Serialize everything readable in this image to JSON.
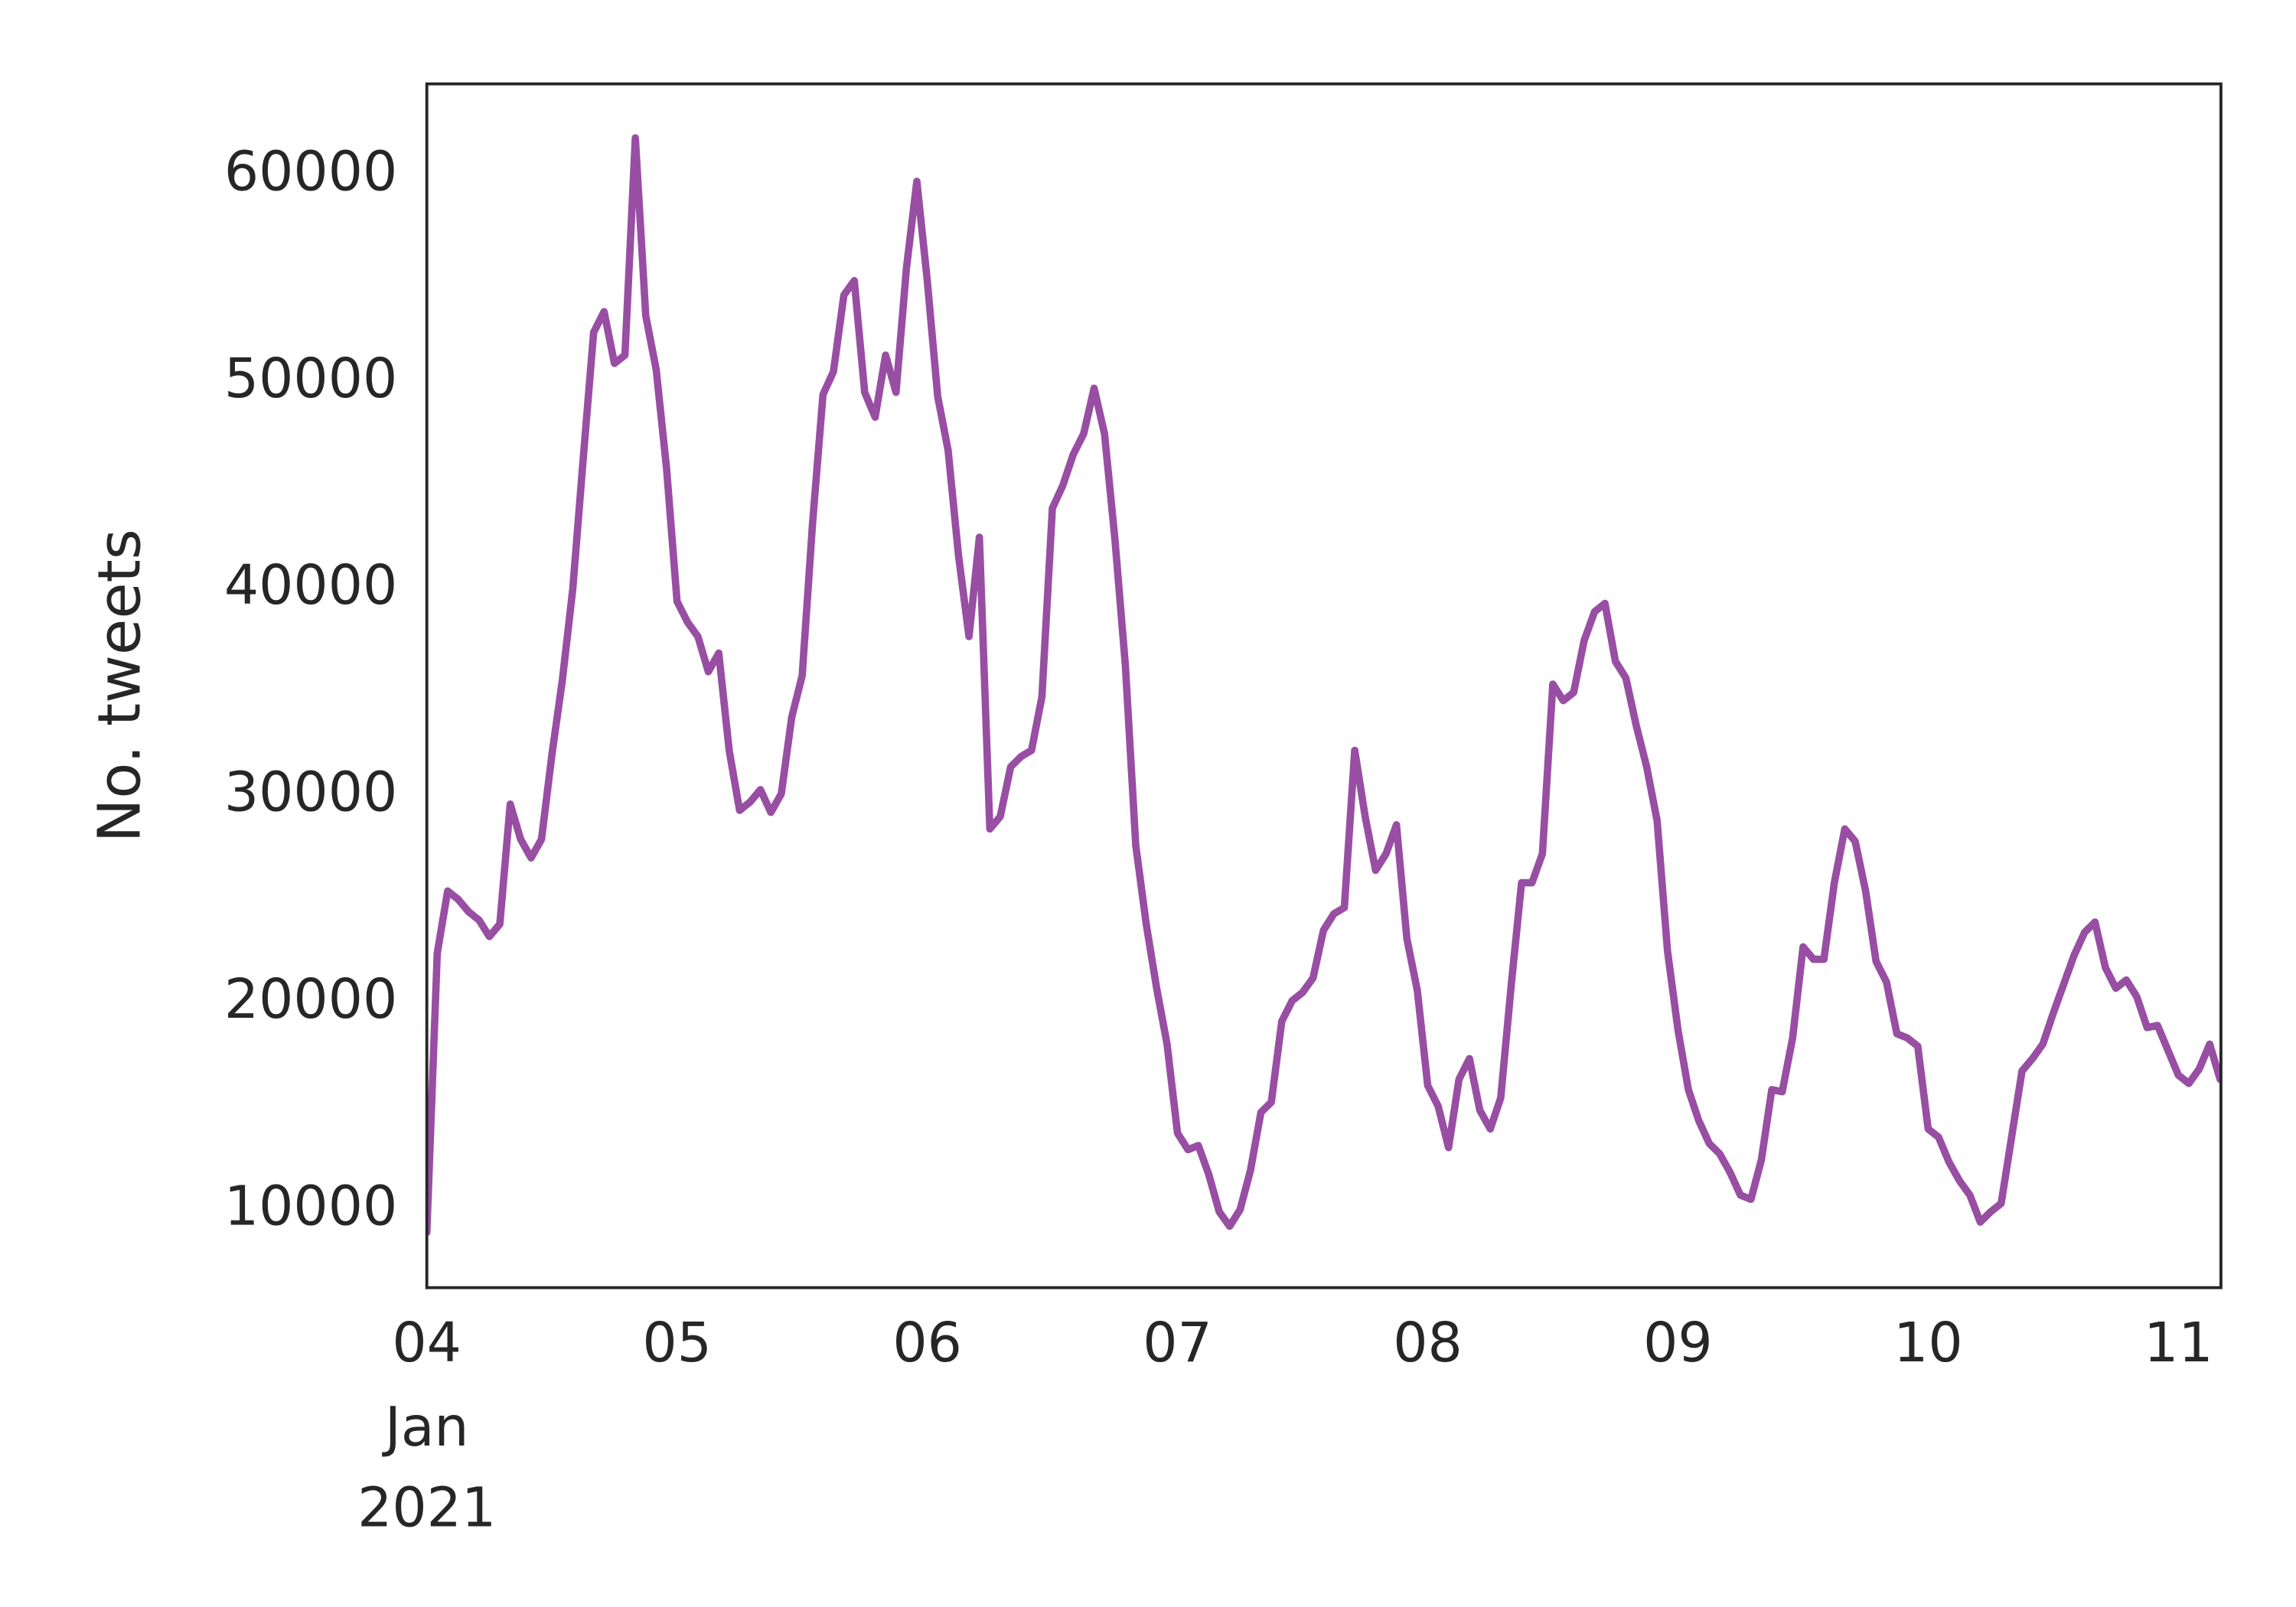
{
  "chart_data": {
    "type": "line",
    "ylabel": "No. tweets",
    "color": "#984ea3",
    "grid": false,
    "xlim": [
      4,
      11.17
    ],
    "ylim": [
      6230,
      64410
    ],
    "xticks": [
      {
        "value": 4,
        "label": "04"
      },
      {
        "value": 5,
        "label": "05"
      },
      {
        "value": 6,
        "label": "06"
      },
      {
        "value": 7,
        "label": "07"
      },
      {
        "value": 8,
        "label": "08"
      },
      {
        "value": 9,
        "label": "09"
      },
      10,
      11
    ],
    "xtick_date_label": [
      "Jan",
      "2021"
    ],
    "yticks": [
      10000,
      20000,
      30000,
      40000,
      50000,
      60000
    ],
    "x": [
      4,
      4.0417,
      4.0833,
      4.125,
      4.1667,
      4.2083,
      4.25,
      4.2917,
      4.3333,
      4.375,
      4.4167,
      4.4583,
      4.5,
      4.5417,
      4.5833,
      4.625,
      4.6667,
      4.7083,
      4.75,
      4.7917,
      4.8333,
      4.875,
      4.9167,
      4.9583,
      5,
      5.0417,
      5.0833,
      5.125,
      5.1667,
      5.2083,
      5.25,
      5.2917,
      5.3333,
      5.375,
      5.4167,
      5.4583,
      5.5,
      5.5417,
      5.5833,
      5.625,
      5.6667,
      5.7083,
      5.75,
      5.7917,
      5.8333,
      5.875,
      5.9167,
      5.9583,
      6,
      6.0417,
      6.0833,
      6.125,
      6.1667,
      6.2083,
      6.25,
      6.2917,
      6.3333,
      6.375,
      6.4167,
      6.4583,
      6.5,
      6.5417,
      6.5833,
      6.625,
      6.6667,
      6.7083,
      6.75,
      6.7917,
      6.8333,
      6.875,
      6.9167,
      6.9583,
      7,
      7.0417,
      7.0833,
      7.125,
      7.1667,
      7.2083,
      7.25,
      7.2917,
      7.3333,
      7.375,
      7.4167,
      7.4583,
      7.5,
      7.5417,
      7.5833,
      7.625,
      7.6667,
      7.7083,
      7.75,
      7.7917,
      7.8333,
      7.875,
      7.9167,
      7.9583,
      8,
      8.0417,
      8.0833,
      8.125,
      8.1667,
      8.2083,
      8.25,
      8.2917,
      8.3333,
      8.375,
      8.4167,
      8.4583,
      8.5,
      8.5417,
      8.5833,
      8.625,
      8.6667,
      8.7083,
      8.75,
      8.7917,
      8.8333,
      8.875,
      8.9167,
      8.9583,
      9,
      9.0417,
      9.0833,
      9.125,
      9.1667,
      9.2083,
      9.25,
      9.2917,
      9.3333,
      9.375,
      9.4167,
      9.4583,
      9.5,
      9.5417,
      9.5833,
      9.625,
      9.6667,
      9.7083,
      9.75,
      9.7917,
      9.8333,
      9.875,
      9.9167,
      9.9583,
      10,
      10.0417,
      10.0833,
      10.125,
      10.1667,
      10.2083,
      10.25,
      10.2917,
      10.3333,
      10.375,
      10.4167,
      10.4583,
      10.5,
      10.5417,
      10.5833,
      10.625,
      10.6667,
      10.7083,
      10.75,
      10.7917,
      10.8333,
      10.875,
      10.9167,
      10.9583,
      11,
      11.0417,
      11.0833,
      11.125,
      11.1667
    ],
    "values": [
      8900,
      22400,
      25400,
      25000,
      24400,
      24000,
      23200,
      23800,
      29600,
      27900,
      27000,
      27900,
      32000,
      35600,
      40000,
      46300,
      52400,
      53400,
      50900,
      51300,
      61800,
      53200,
      50600,
      45800,
      39400,
      38400,
      37700,
      36000,
      36900,
      32200,
      29300,
      29700,
      30300,
      29200,
      30100,
      33800,
      35800,
      43200,
      49400,
      50500,
      54200,
      54900,
      49500,
      48300,
      51300,
      49500,
      55500,
      59700,
      54900,
      49300,
      46700,
      41600,
      37700,
      42500,
      28400,
      29000,
      31400,
      31900,
      32200,
      34800,
      43900,
      45000,
      46500,
      47500,
      49700,
      47500,
      42400,
      36300,
      27600,
      23800,
      20700,
      18000,
      13700,
      12900,
      13100,
      11700,
      9900,
      9200,
      10000,
      11900,
      14700,
      15200,
      19100,
      20100,
      20500,
      21200,
      23500,
      24300,
      24600,
      32200,
      29000,
      26400,
      27200,
      28600,
      23100,
      20600,
      16000,
      15000,
      13000,
      16300,
      17300,
      14800,
      13900,
      15400,
      20800,
      25800,
      25800,
      27200,
      35400,
      34600,
      35000,
      37500,
      38900,
      39300,
      36500,
      35700,
      33400,
      31400,
      28800,
      22500,
      18700,
      15800,
      14300,
      13200,
      12700,
      11800,
      10700,
      10500,
      12400,
      15800,
      15700,
      18300,
      22700,
      22100,
      22100,
      25800,
      28400,
      27800,
      25400,
      22000,
      21000,
      18500,
      18300,
      17900,
      13900,
      13500,
      12300,
      11400,
      10700,
      9400,
      9900,
      10300,
      13500,
      16700,
      17300,
      18000,
      19500,
      20900,
      22300,
      23400,
      23900,
      21700,
      20700,
      21100,
      20300,
      18800,
      18900,
      17700,
      16500,
      16100,
      16800,
      18000,
      16300
    ]
  }
}
